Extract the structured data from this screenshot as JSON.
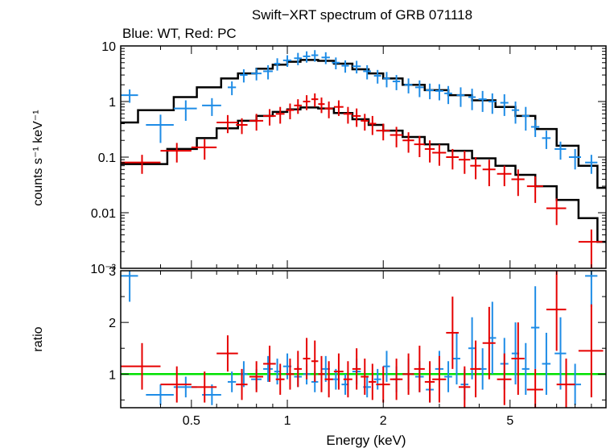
{
  "title": "Swift−XRT spectrum of GRB 071118",
  "subtitle": "Blue: WT, Red: PC",
  "colors": {
    "wt": "#1e8ce6",
    "pc": "#e60000",
    "model": "#000000",
    "unity": "#00e000"
  },
  "chart_data": [
    {
      "type": "scatter",
      "panel": "spectrum",
      "ylabel": "counts s⁻¹ keV⁻¹",
      "xscale": "log",
      "yscale": "log",
      "xlim": [
        0.3,
        10
      ],
      "ylim": [
        0.001,
        10
      ],
      "x_ticks": [
        0.5,
        1,
        2,
        5
      ],
      "y_ticks": [
        {
          "value": 10,
          "label": "10"
        },
        {
          "value": 1,
          "label": "1"
        },
        {
          "value": 0.1,
          "label": "0.1"
        },
        {
          "value": 0.01,
          "label": "0.01"
        },
        {
          "value": 0.001,
          "label": "10⁻³"
        }
      ],
      "series": [
        {
          "key": "wt",
          "x": [
            0.32,
            0.4,
            0.48,
            0.58,
            0.67,
            0.73,
            0.8,
            0.87,
            0.93,
            1.0,
            1.08,
            1.15,
            1.22,
            1.32,
            1.42,
            1.52,
            1.65,
            1.78,
            1.92,
            2.05,
            2.2,
            2.4,
            2.6,
            2.8,
            3.0,
            3.2,
            3.5,
            3.8,
            4.1,
            4.4,
            4.8,
            5.2,
            5.6,
            6.0,
            6.5,
            7.2,
            8.0,
            9.0
          ],
          "y": [
            1.3,
            0.38,
            0.75,
            0.85,
            1.8,
            3.0,
            3.2,
            3.5,
            4.8,
            5.5,
            6.0,
            6.5,
            6.8,
            6.2,
            5.0,
            4.4,
            4.3,
            3.5,
            2.9,
            2.6,
            2.3,
            2.0,
            1.8,
            1.6,
            1.55,
            1.4,
            1.3,
            1.2,
            1.1,
            1.0,
            0.95,
            0.7,
            0.55,
            0.35,
            0.22,
            0.14,
            0.1,
            0.08
          ],
          "xerr": [
            0.02,
            0.04,
            0.04,
            0.04,
            0.02,
            0.02,
            0.03,
            0.03,
            0.02,
            0.03,
            0.03,
            0.03,
            0.03,
            0.04,
            0.04,
            0.04,
            0.05,
            0.05,
            0.05,
            0.05,
            0.06,
            0.07,
            0.08,
            0.08,
            0.09,
            0.09,
            0.1,
            0.1,
            0.12,
            0.12,
            0.14,
            0.14,
            0.15,
            0.18,
            0.2,
            0.3,
            0.35,
            0.4
          ],
          "yerr": [
            0.35,
            0.2,
            0.3,
            0.3,
            0.5,
            0.8,
            0.8,
            1.0,
            1.2,
            1.3,
            1.5,
            1.5,
            1.6,
            1.5,
            1.2,
            1.1,
            1.1,
            1.0,
            0.8,
            0.8,
            0.7,
            0.6,
            0.6,
            0.5,
            0.5,
            0.5,
            0.5,
            0.5,
            0.45,
            0.4,
            0.4,
            0.3,
            0.25,
            0.12,
            0.08,
            0.05,
            0.04,
            0.03
          ]
        },
        {
          "key": "pc",
          "x": [
            0.35,
            0.45,
            0.55,
            0.65,
            0.72,
            0.8,
            0.88,
            0.95,
            1.02,
            1.08,
            1.15,
            1.22,
            1.28,
            1.35,
            1.45,
            1.55,
            1.65,
            1.75,
            1.85,
            2.0,
            2.2,
            2.4,
            2.6,
            2.8,
            3.0,
            3.3,
            3.6,
            3.9,
            4.3,
            4.8,
            5.3,
            6.0,
            7.0,
            9.0
          ],
          "y": [
            0.08,
            0.13,
            0.15,
            0.42,
            0.38,
            0.45,
            0.55,
            0.6,
            0.7,
            0.85,
            1.0,
            1.1,
            0.9,
            0.75,
            0.8,
            0.6,
            0.55,
            0.45,
            0.4,
            0.3,
            0.25,
            0.2,
            0.17,
            0.14,
            0.12,
            0.1,
            0.09,
            0.07,
            0.06,
            0.05,
            0.04,
            0.03,
            0.012,
            0.003
          ],
          "xerr": [
            0.05,
            0.05,
            0.05,
            0.05,
            0.03,
            0.04,
            0.04,
            0.03,
            0.03,
            0.03,
            0.03,
            0.03,
            0.03,
            0.04,
            0.05,
            0.05,
            0.05,
            0.05,
            0.05,
            0.1,
            0.1,
            0.1,
            0.1,
            0.1,
            0.15,
            0.15,
            0.15,
            0.15,
            0.2,
            0.25,
            0.25,
            0.35,
            0.5,
            0.8
          ],
          "yerr": [
            0.03,
            0.05,
            0.06,
            0.15,
            0.12,
            0.15,
            0.18,
            0.2,
            0.22,
            0.25,
            0.3,
            0.3,
            0.28,
            0.25,
            0.25,
            0.2,
            0.2,
            0.15,
            0.15,
            0.1,
            0.1,
            0.08,
            0.07,
            0.06,
            0.05,
            0.04,
            0.04,
            0.03,
            0.03,
            0.02,
            0.02,
            0.015,
            0.006,
            0.002
          ]
        }
      ],
      "models": [
        {
          "key": "wt",
          "x": [
            0.3,
            0.34,
            0.34,
            0.44,
            0.44,
            0.52,
            0.52,
            0.62,
            0.62,
            0.7,
            0.7,
            0.8,
            0.8,
            0.9,
            0.9,
            1.0,
            1.0,
            1.1,
            1.1,
            1.25,
            1.25,
            1.4,
            1.4,
            1.6,
            1.6,
            1.8,
            1.8,
            2.0,
            2.0,
            2.3,
            2.3,
            2.7,
            2.7,
            3.2,
            3.2,
            3.8,
            3.8,
            4.5,
            4.5,
            5.2,
            5.2,
            6.0,
            6.0,
            7.0,
            7.0,
            8.2,
            8.2,
            9.4,
            9.4,
            10.0
          ],
          "y": [
            0.42,
            0.42,
            0.7,
            0.7,
            1.2,
            1.2,
            1.8,
            1.8,
            2.6,
            2.6,
            3.2,
            3.2,
            3.9,
            3.9,
            4.6,
            4.6,
            5.2,
            5.2,
            5.6,
            5.6,
            5.4,
            5.4,
            4.8,
            4.8,
            3.8,
            3.8,
            3.2,
            3.2,
            2.6,
            2.6,
            2.0,
            2.0,
            1.6,
            1.6,
            1.3,
            1.3,
            1.05,
            1.05,
            0.8,
            0.8,
            0.55,
            0.55,
            0.32,
            0.32,
            0.16,
            0.16,
            0.07,
            0.07,
            0.028,
            0.028
          ]
        },
        {
          "key": "pc",
          "x": [
            0.3,
            0.42,
            0.42,
            0.52,
            0.52,
            0.6,
            0.6,
            0.7,
            0.7,
            0.8,
            0.8,
            0.9,
            0.9,
            1.0,
            1.0,
            1.1,
            1.1,
            1.25,
            1.25,
            1.4,
            1.4,
            1.6,
            1.6,
            1.8,
            1.8,
            2.0,
            2.0,
            2.3,
            2.3,
            2.7,
            2.7,
            3.2,
            3.2,
            3.8,
            3.8,
            4.5,
            4.5,
            5.2,
            5.2,
            6.0,
            6.0,
            7.0,
            7.0,
            8.2,
            8.2,
            9.4,
            9.4,
            10.0
          ],
          "y": [
            0.075,
            0.075,
            0.14,
            0.14,
            0.22,
            0.22,
            0.33,
            0.33,
            0.45,
            0.45,
            0.55,
            0.55,
            0.65,
            0.65,
            0.72,
            0.72,
            0.78,
            0.78,
            0.75,
            0.75,
            0.62,
            0.62,
            0.48,
            0.48,
            0.38,
            0.38,
            0.3,
            0.3,
            0.23,
            0.23,
            0.17,
            0.17,
            0.13,
            0.13,
            0.095,
            0.095,
            0.07,
            0.07,
            0.048,
            0.048,
            0.03,
            0.03,
            0.017,
            0.017,
            0.008,
            0.008,
            0.003,
            0.003
          ]
        }
      ]
    },
    {
      "type": "scatter",
      "panel": "ratio",
      "xlabel": "Energy (keV)",
      "ylabel": "ratio",
      "xscale": "log",
      "yscale": "linear",
      "xlim": [
        0.3,
        10
      ],
      "ylim": [
        0.35,
        3.0
      ],
      "x_ticks": [
        {
          "value": 0.5,
          "label": "0.5"
        },
        {
          "value": 1,
          "label": "1"
        },
        {
          "value": 2,
          "label": "2"
        },
        {
          "value": 5,
          "label": "5"
        }
      ],
      "y_ticks": [
        {
          "value": 1,
          "label": "1"
        },
        {
          "value": 2,
          "label": "2"
        },
        {
          "value": 3,
          "label": "3"
        }
      ],
      "reference_line": 1,
      "series": [
        {
          "key": "wt",
          "x": [
            0.32,
            0.4,
            0.48,
            0.58,
            0.67,
            0.73,
            0.8,
            0.87,
            0.93,
            1.0,
            1.08,
            1.15,
            1.22,
            1.32,
            1.42,
            1.52,
            1.65,
            1.78,
            1.92,
            2.05,
            2.2,
            2.4,
            2.6,
            2.8,
            3.0,
            3.2,
            3.4,
            3.6,
            3.8,
            4.1,
            4.4,
            4.8,
            5.2,
            5.6,
            6.0,
            6.5,
            7.2,
            8.0,
            9.0
          ],
          "y": [
            2.9,
            0.6,
            0.75,
            0.6,
            0.85,
            1.0,
            0.9,
            1.1,
            1.05,
            1.15,
            0.95,
            1.0,
            0.85,
            1.1,
            0.9,
            0.8,
            1.05,
            0.75,
            0.9,
            1.15,
            0.9,
            1.0,
            0.95,
            0.7,
            1.1,
            0.95,
            1.3,
            0.8,
            1.5,
            1.1,
            1.7,
            1.2,
            1.4,
            1.1,
            1.9,
            1.2,
            1.4,
            0.8,
            2.9
          ],
          "xerr": [
            0.02,
            0.04,
            0.04,
            0.04,
            0.02,
            0.02,
            0.03,
            0.03,
            0.02,
            0.03,
            0.03,
            0.03,
            0.03,
            0.04,
            0.04,
            0.04,
            0.05,
            0.05,
            0.05,
            0.05,
            0.06,
            0.07,
            0.08,
            0.08,
            0.09,
            0.09,
            0.09,
            0.1,
            0.1,
            0.12,
            0.12,
            0.14,
            0.14,
            0.15,
            0.18,
            0.2,
            0.3,
            0.35,
            0.4
          ],
          "yerr": [
            0.5,
            0.2,
            0.2,
            0.2,
            0.2,
            0.25,
            0.2,
            0.25,
            0.25,
            0.25,
            0.2,
            0.2,
            0.2,
            0.25,
            0.2,
            0.2,
            0.25,
            0.2,
            0.2,
            0.3,
            0.25,
            0.3,
            0.3,
            0.25,
            0.35,
            0.3,
            0.5,
            0.3,
            0.6,
            0.4,
            0.7,
            0.5,
            0.6,
            0.5,
            0.8,
            0.6,
            0.7,
            0.4,
            0.6
          ]
        },
        {
          "key": "pc",
          "x": [
            0.35,
            0.45,
            0.55,
            0.65,
            0.72,
            0.8,
            0.88,
            0.95,
            1.02,
            1.08,
            1.15,
            1.22,
            1.28,
            1.35,
            1.45,
            1.55,
            1.65,
            1.75,
            1.85,
            2.0,
            2.2,
            2.4,
            2.6,
            2.8,
            3.0,
            3.3,
            3.6,
            3.9,
            4.3,
            4.8,
            5.3,
            6.0,
            7.0,
            7.5,
            9.0
          ],
          "y": [
            1.15,
            0.8,
            0.75,
            1.4,
            0.8,
            0.95,
            1.2,
            0.9,
            1.0,
            1.1,
            1.3,
            1.25,
            1.0,
            0.9,
            1.05,
            0.9,
            1.1,
            0.95,
            0.85,
            0.8,
            0.9,
            1.0,
            1.1,
            0.85,
            0.9,
            1.8,
            0.75,
            1.1,
            1.6,
            0.9,
            1.3,
            0.7,
            2.25,
            0.8,
            1.45
          ],
          "xerr": [
            0.05,
            0.05,
            0.05,
            0.05,
            0.03,
            0.04,
            0.04,
            0.03,
            0.03,
            0.03,
            0.03,
            0.03,
            0.03,
            0.04,
            0.05,
            0.05,
            0.05,
            0.05,
            0.05,
            0.1,
            0.1,
            0.1,
            0.1,
            0.1,
            0.15,
            0.15,
            0.15,
            0.15,
            0.2,
            0.25,
            0.25,
            0.35,
            0.5,
            0.5,
            0.8
          ],
          "yerr": [
            0.45,
            0.35,
            0.3,
            0.35,
            0.3,
            0.3,
            0.35,
            0.3,
            0.3,
            0.35,
            0.4,
            0.4,
            0.35,
            0.35,
            0.35,
            0.35,
            0.4,
            0.35,
            0.35,
            0.35,
            0.4,
            0.4,
            0.45,
            0.4,
            0.45,
            0.7,
            0.4,
            0.55,
            0.7,
            0.5,
            0.7,
            0.4,
            0.8,
            0.5,
            0.9
          ]
        }
      ]
    }
  ]
}
